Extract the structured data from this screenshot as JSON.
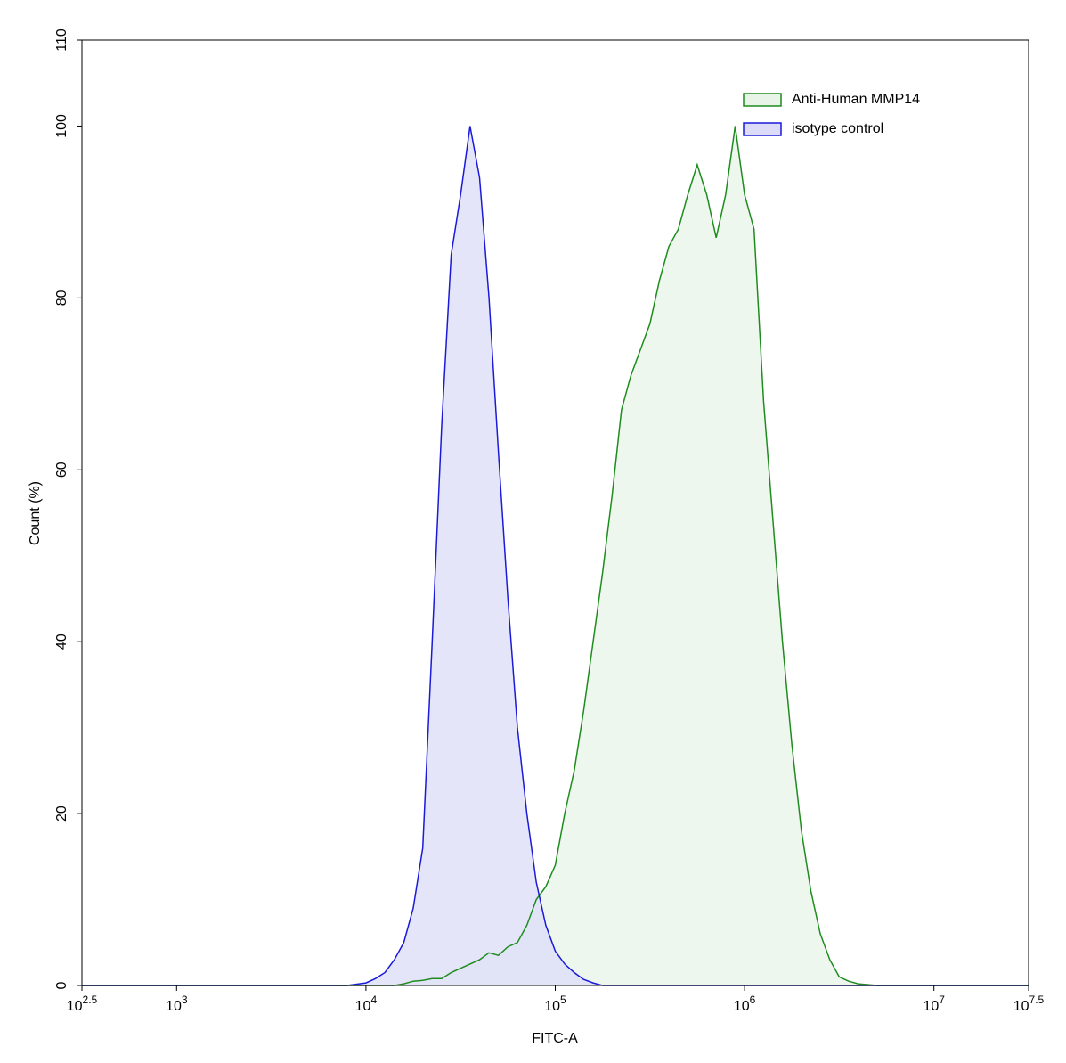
{
  "chart_data": {
    "type": "histogram-overlay",
    "xlabel": "FITC-A",
    "ylabel": "Count  (%)",
    "xscale": "log",
    "xlim": [
      316.2278,
      31622777
    ],
    "xticks": [
      {
        "value": 316.2278,
        "label": "10^2.5"
      },
      {
        "value": 1000,
        "label": "10^3"
      },
      {
        "value": 10000,
        "label": "10^4"
      },
      {
        "value": 100000,
        "label": "10^5"
      },
      {
        "value": 1000000,
        "label": "10^6"
      },
      {
        "value": 10000000,
        "label": "10^7"
      },
      {
        "value": 31622777,
        "label": "10^7.5"
      }
    ],
    "ylim": [
      0,
      110
    ],
    "yticks": [
      0,
      20,
      40,
      60,
      80,
      100,
      110
    ],
    "legend": "top-right",
    "x": [
      316.2278,
      7943,
      10000,
      11220,
      12590,
      14130,
      15850,
      17780,
      19950,
      22390,
      25120,
      28180,
      31620,
      35480,
      39810,
      44670,
      50120,
      56230,
      63100,
      70790,
      79430,
      89130,
      100000,
      112200,
      125900,
      141300,
      158500,
      177800,
      199500,
      223900,
      251200,
      281800,
      316200,
      354800,
      398100,
      446700,
      501200,
      562300,
      631000,
      707900,
      794300,
      891300,
      1000000,
      1122000,
      1259000,
      1413000,
      1585000,
      1778000,
      1995000,
      2239000,
      2512000,
      2818000,
      3162000,
      3548000,
      3981000,
      5012000,
      31622777
    ],
    "series": [
      {
        "name": "Anti-Human MMP14",
        "color": "#1e8c1e",
        "fill": "#e8f4e8",
        "values": [
          0,
          0,
          0,
          0,
          0,
          0,
          0.2,
          0.5,
          0.6,
          0.8,
          0.8,
          1.5,
          2,
          2.5,
          3,
          3.8,
          3.5,
          4.5,
          5,
          7,
          10,
          11.5,
          14,
          20,
          25,
          32,
          40,
          48,
          57,
          67,
          71,
          74,
          77,
          82,
          86,
          88,
          92,
          95.5,
          92,
          87,
          92,
          100,
          92,
          88,
          68,
          54,
          40,
          28,
          18,
          11,
          6,
          3,
          1,
          0.5,
          0.2,
          0,
          0
        ]
      },
      {
        "name": "isotype control",
        "color": "#1a1ad8",
        "fill": "#dcdcf8",
        "values": [
          0,
          0,
          0.3,
          0.8,
          1.5,
          3,
          5,
          9,
          16,
          40,
          65,
          85,
          92,
          100,
          94,
          80,
          62,
          45,
          30,
          20,
          12,
          7,
          4,
          2.5,
          1.5,
          0.7,
          0.3,
          0,
          0,
          0,
          0,
          0,
          0,
          0,
          0,
          0,
          0,
          0,
          0,
          0,
          0,
          0,
          0,
          0,
          0,
          0,
          0,
          0,
          0,
          0,
          0,
          0,
          0,
          0,
          0,
          0,
          0
        ]
      }
    ]
  }
}
